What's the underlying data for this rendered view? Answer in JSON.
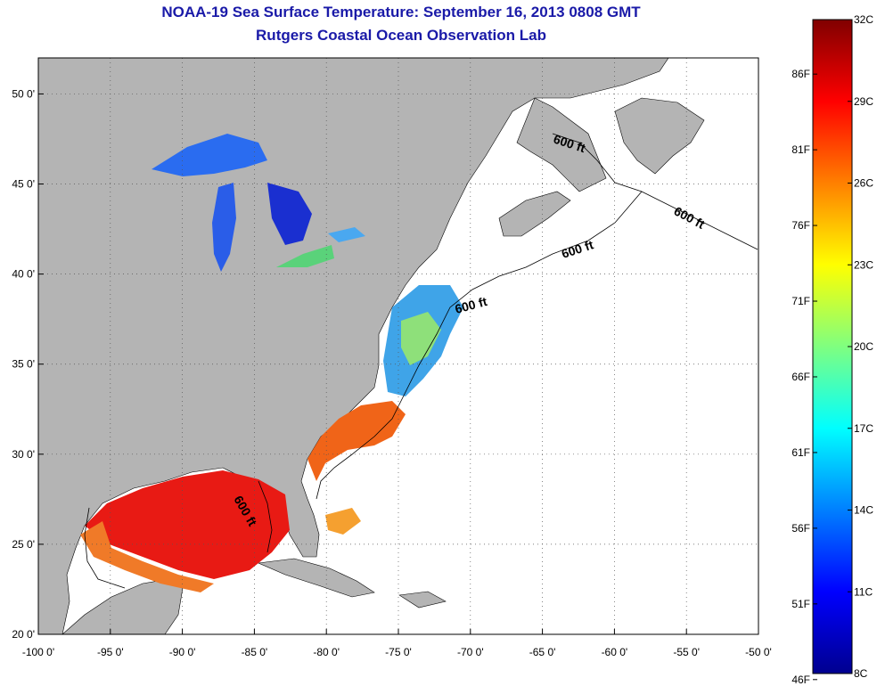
{
  "title": {
    "line1": "NOAA-19 Sea Surface Temperature:  September 16, 2013 0808 GMT",
    "line2": "Rutgers Coastal Ocean Observation Lab"
  },
  "map": {
    "lon_range": [
      -100,
      -50
    ],
    "lat_range": [
      20,
      52
    ],
    "x_ticks": [
      "-100 0'",
      "-95 0'",
      "-90 0'",
      "-85 0'",
      "-80 0'",
      "-75 0'",
      "-70 0'",
      "-65 0'",
      "-60 0'",
      "-55 0'",
      "-50 0'"
    ],
    "x_tick_values": [
      -100,
      -95,
      -90,
      -85,
      -80,
      -75,
      -70,
      -65,
      -60,
      -55,
      -50
    ],
    "y_ticks": [
      "20 0'",
      "25 0'",
      "30 0'",
      "35 0'",
      "40 0'",
      "45 0'",
      "50 0'"
    ],
    "y_tick_values": [
      20,
      25,
      30,
      35,
      40,
      45,
      50
    ],
    "grid": "dotted",
    "land_color": "#b4b4b4",
    "ocean_color": "#ffffff",
    "contour_labels": [
      "600 ft",
      "600 ft",
      "600 ft",
      "600 ft",
      "600 ft"
    ]
  },
  "colorbar": {
    "range_c": [
      8,
      32
    ],
    "celsius_labels": [
      "32C",
      "29C",
      "26C",
      "23C",
      "20C",
      "17C",
      "14C",
      "11C",
      "8C"
    ],
    "celsius_values": [
      32,
      29,
      26,
      23,
      20,
      17,
      14,
      11,
      8
    ],
    "fahrenheit_labels": [
      "86F",
      "81F",
      "76F",
      "71F",
      "66F",
      "61F",
      "56F",
      "51F",
      "46F"
    ],
    "fahrenheit_values": [
      86,
      81,
      76,
      71,
      66,
      61,
      56,
      51,
      46
    ],
    "colormap": "jet"
  }
}
